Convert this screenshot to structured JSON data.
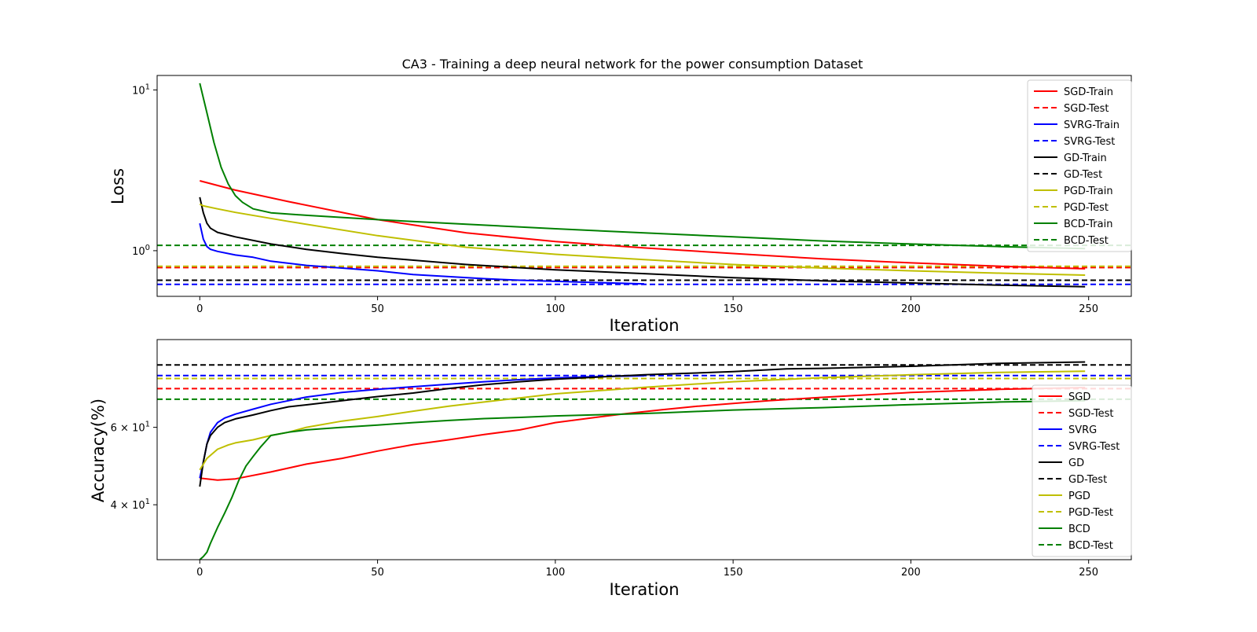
{
  "chart_data": [
    {
      "type": "line",
      "title": "CA3 - Training a deep neural network for the power consumption Dataset",
      "xlabel": "Iteration",
      "ylabel": "Loss",
      "yscale": "log",
      "xlim": [
        -12,
        262
      ],
      "ylim": [
        0.52,
        12.3
      ],
      "xticks": [
        0,
        50,
        100,
        150,
        200,
        250
      ],
      "yticks": [
        {
          "value": 1,
          "label": "10^0"
        },
        {
          "value": 10,
          "label": "10^1"
        }
      ],
      "legend_position": "upper right",
      "series": [
        {
          "name": "SGD-Train",
          "color": "#ff0000",
          "style": "solid",
          "x": [
            0,
            10,
            25,
            50,
            75,
            100,
            125,
            150,
            175,
            200,
            225,
            249
          ],
          "y": [
            2.72,
            2.38,
            2.02,
            1.56,
            1.29,
            1.14,
            1.04,
            0.96,
            0.89,
            0.84,
            0.8,
            0.772
          ]
        },
        {
          "name": "SGD-Test",
          "color": "#ff0000",
          "style": "dashed",
          "value": 0.785
        },
        {
          "name": "SVRG-Train",
          "color": "#0000ff",
          "style": "solid",
          "x": [
            0,
            1,
            2,
            3,
            5,
            10,
            15,
            20,
            30,
            40,
            50,
            60,
            70,
            80,
            90,
            100,
            110,
            125
          ],
          "y": [
            1.48,
            1.18,
            1.06,
            1.02,
            0.99,
            0.94,
            0.91,
            0.86,
            0.81,
            0.78,
            0.75,
            0.71,
            0.69,
            0.67,
            0.655,
            0.645,
            0.635,
            0.622
          ]
        },
        {
          "name": "SVRG-Test",
          "color": "#0000ff",
          "style": "dashed",
          "value": 0.617
        },
        {
          "name": "GD-Train",
          "color": "#000000",
          "style": "solid",
          "x": [
            0,
            1,
            2,
            3,
            5,
            10,
            20,
            30,
            40,
            50,
            75,
            100,
            125,
            150,
            175,
            200,
            225,
            249
          ],
          "y": [
            2.15,
            1.72,
            1.48,
            1.38,
            1.3,
            1.22,
            1.1,
            1.02,
            0.96,
            0.91,
            0.82,
            0.76,
            0.72,
            0.68,
            0.65,
            0.63,
            0.61,
            0.597
          ]
        },
        {
          "name": "GD-Test",
          "color": "#000000",
          "style": "dashed",
          "value": 0.655
        },
        {
          "name": "PGD-Train",
          "color": "#bfbf00",
          "style": "solid",
          "x": [
            0,
            1,
            5,
            10,
            25,
            50,
            75,
            100,
            125,
            150,
            175,
            200,
            225,
            249
          ],
          "y": [
            1.95,
            1.9,
            1.82,
            1.73,
            1.52,
            1.24,
            1.05,
            0.95,
            0.88,
            0.82,
            0.78,
            0.75,
            0.725,
            0.705
          ]
        },
        {
          "name": "PGD-Test",
          "color": "#bfbf00",
          "style": "dashed",
          "value": 0.8
        },
        {
          "name": "BCD-Train",
          "color": "#008000",
          "style": "solid",
          "x": [
            0,
            2,
            4,
            6,
            8,
            10,
            12,
            15,
            20,
            30,
            50,
            75,
            100,
            125,
            150,
            175,
            200,
            225,
            249
          ],
          "y": [
            11.0,
            7.2,
            4.7,
            3.3,
            2.6,
            2.2,
            2.0,
            1.82,
            1.72,
            1.66,
            1.56,
            1.46,
            1.37,
            1.29,
            1.22,
            1.15,
            1.1,
            1.06,
            1.03
          ]
        },
        {
          "name": "BCD-Test",
          "color": "#008000",
          "style": "dashed",
          "value": 1.08
        }
      ]
    },
    {
      "type": "line",
      "title": "",
      "xlabel": "Iteration",
      "ylabel": "Accuracy(%)",
      "yscale": "log",
      "xlim": [
        -12,
        262
      ],
      "ylim": [
        30,
        95
      ],
      "xticks": [
        0,
        50,
        100,
        150,
        200,
        250
      ],
      "yticks": [
        {
          "value": 40,
          "label": "4 × 10^1"
        },
        {
          "value": 60,
          "label": "6 × 10^1"
        }
      ],
      "legend_position": "lower right",
      "series": [
        {
          "name": "SGD",
          "color": "#ff0000",
          "style": "solid",
          "x": [
            0,
            3,
            5,
            10,
            20,
            30,
            40,
            50,
            60,
            70,
            80,
            90,
            100,
            110,
            120,
            130,
            140,
            150,
            160,
            175,
            200,
            225,
            249
          ],
          "y": [
            46,
            45.7,
            45.5,
            45.8,
            47.5,
            49.5,
            51,
            53,
            54.8,
            56.2,
            57.8,
            59.2,
            61.5,
            63,
            64.5,
            65.8,
            67,
            68,
            69,
            70.2,
            72,
            73.2,
            73.9
          ]
        },
        {
          "name": "SGD-Test",
          "color": "#ff0000",
          "style": "dashed",
          "value": 73.5
        },
        {
          "name": "SVRG",
          "color": "#0000ff",
          "style": "solid",
          "x": [
            0,
            1,
            2,
            3,
            5,
            7,
            10,
            15,
            20,
            25,
            30,
            40,
            50,
            60,
            70,
            80,
            90,
            100,
            110,
            125
          ],
          "y": [
            46,
            50,
            55,
            58.5,
            61.5,
            63,
            64.3,
            66,
            67.7,
            69,
            70.3,
            72,
            73.2,
            74.2,
            75.2,
            76.2,
            77,
            77.7,
            78.2,
            78.6
          ]
        },
        {
          "name": "SVRG-Test",
          "color": "#0000ff",
          "style": "dashed",
          "value": 78.7
        },
        {
          "name": "GD",
          "color": "#000000",
          "style": "solid",
          "x": [
            0,
            1,
            2,
            3,
            5,
            7,
            10,
            15,
            20,
            25,
            30,
            40,
            50,
            60,
            70,
            80,
            90,
            100,
            125,
            150,
            165,
            175,
            200,
            225,
            249
          ],
          "y": [
            44,
            50,
            55,
            57.5,
            60,
            61.5,
            62.7,
            64,
            65.5,
            66.8,
            67.5,
            69,
            70.5,
            71.8,
            73.5,
            75,
            76.2,
            77.2,
            79,
            80.3,
            81.5,
            81.7,
            82.6,
            83.9,
            84.5
          ]
        },
        {
          "name": "GD-Test",
          "color": "#000000",
          "style": "dashed",
          "value": 83.2
        },
        {
          "name": "PGD",
          "color": "#bfbf00",
          "style": "solid",
          "x": [
            0,
            2,
            5,
            8,
            10,
            15,
            20,
            25,
            30,
            40,
            50,
            60,
            70,
            80,
            90,
            100,
            110,
            125,
            150,
            175,
            200,
            225,
            249
          ],
          "y": [
            48,
            51,
            53.5,
            54.7,
            55.3,
            56.2,
            57.5,
            58.5,
            60,
            62,
            63.5,
            65.3,
            67,
            68.5,
            70,
            71.5,
            72.5,
            74,
            76.2,
            77.8,
            79,
            80,
            80.5
          ]
        },
        {
          "name": "PGD-Test",
          "color": "#bfbf00",
          "style": "dashed",
          "value": 77.5
        },
        {
          "name": "BCD",
          "color": "#008000",
          "style": "solid",
          "x": [
            0,
            1,
            2,
            3,
            5,
            7,
            9,
            11,
            13,
            15,
            17,
            20,
            25,
            30,
            40,
            50,
            60,
            70,
            80,
            90,
            100,
            110,
            120,
            130,
            140,
            150,
            175,
            200,
            225,
            249
          ],
          "y": [
            30,
            30.5,
            31.2,
            32.7,
            35.5,
            38.3,
            41.5,
            45.5,
            49,
            51.5,
            54,
            57.5,
            58.5,
            59.2,
            60,
            60.7,
            61.5,
            62.2,
            62.8,
            63.2,
            63.7,
            64,
            64.3,
            64.7,
            65.2,
            65.7,
            66.5,
            67.6,
            68.5,
            69
          ]
        },
        {
          "name": "BCD-Test",
          "color": "#008000",
          "style": "dashed",
          "value": 69.5
        }
      ]
    }
  ]
}
